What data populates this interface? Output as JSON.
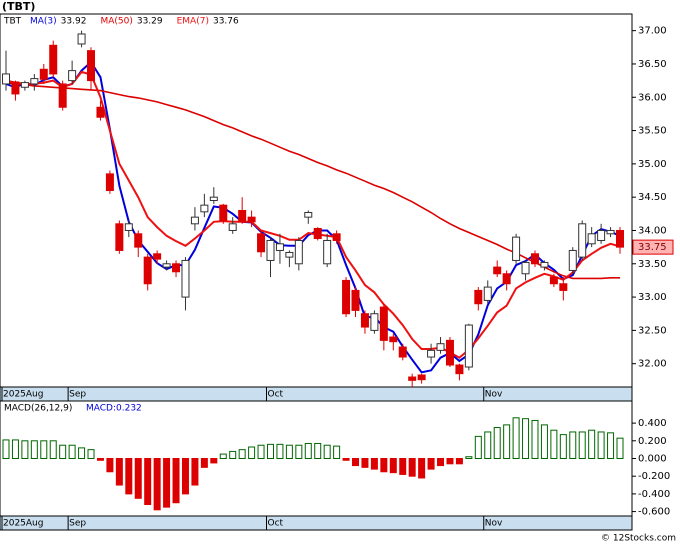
{
  "chart_data": [
    {
      "type": "candlestick",
      "title": "(TBT)",
      "symbol": "TBT",
      "categories": [
        "2025Aug",
        null,
        null,
        null,
        null,
        null,
        null,
        "Sep",
        null,
        null,
        null,
        null,
        null,
        null,
        null,
        null,
        null,
        null,
        null,
        null,
        null,
        null,
        null,
        null,
        null,
        null,
        null,
        null,
        "Oct",
        null,
        null,
        null,
        null,
        null,
        null,
        null,
        null,
        null,
        null,
        null,
        null,
        null,
        null,
        null,
        null,
        null,
        null,
        null,
        null,
        null,
        null,
        "Nov",
        null,
        null,
        null,
        null,
        null,
        null,
        null,
        null,
        null,
        null,
        null,
        null,
        null,
        null
      ],
      "open": [
        36.2,
        36.23,
        36.15,
        36.2,
        36.42,
        36.78,
        36.2,
        36.25,
        36.8,
        36.7,
        35.85,
        34.85,
        34.1,
        34.0,
        33.95,
        33.6,
        33.65,
        33.45,
        33.5,
        33.0,
        34.1,
        34.28,
        34.45,
        34.38,
        34.0,
        34.3,
        34.2,
        33.95,
        33.55,
        33.7,
        33.6,
        33.5,
        34.2,
        34.03,
        33.5,
        33.95,
        33.25,
        33.1,
        32.75,
        32.5,
        32.85,
        32.4,
        32.25,
        31.8,
        31.83,
        32.1,
        32.2,
        32.35,
        31.98,
        31.95,
        33.1,
        32.95,
        33.45,
        33.35,
        33.55,
        33.35,
        33.65,
        33.45,
        33.3,
        33.2,
        33.4,
        33.6,
        33.8,
        33.85,
        33.95,
        34.0
      ],
      "high": [
        36.7,
        36.25,
        36.25,
        36.35,
        36.5,
        36.85,
        36.25,
        36.55,
        37.0,
        36.75,
        35.95,
        34.9,
        34.15,
        34.15,
        34.0,
        33.65,
        33.7,
        33.55,
        33.55,
        33.6,
        34.35,
        34.55,
        34.65,
        34.4,
        34.2,
        34.5,
        34.3,
        34.0,
        33.9,
        33.95,
        33.7,
        33.9,
        34.3,
        34.05,
        33.95,
        34.0,
        33.3,
        33.15,
        32.8,
        32.8,
        32.9,
        32.45,
        32.3,
        31.85,
        31.85,
        32.3,
        32.4,
        32.4,
        32.0,
        32.6,
        33.15,
        33.25,
        33.55,
        33.4,
        33.95,
        33.55,
        33.7,
        33.55,
        33.35,
        33.3,
        33.75,
        34.15,
        34.05,
        34.1,
        34.05,
        34.05
      ],
      "low": [
        36.1,
        35.95,
        36.1,
        36.1,
        36.2,
        36.3,
        35.8,
        36.2,
        36.75,
        36.1,
        35.65,
        34.55,
        33.65,
        33.9,
        33.6,
        33.1,
        33.5,
        33.4,
        33.3,
        32.8,
        34.0,
        34.2,
        34.4,
        34.1,
        33.95,
        34.1,
        34.05,
        33.6,
        33.3,
        33.5,
        33.45,
        33.4,
        34.1,
        33.85,
        33.45,
        33.8,
        32.7,
        32.7,
        32.45,
        32.45,
        32.2,
        32.2,
        32.05,
        31.65,
        31.7,
        32.0,
        32.15,
        31.95,
        31.75,
        31.9,
        32.8,
        32.9,
        33.3,
        33.1,
        33.5,
        33.25,
        33.45,
        33.4,
        33.15,
        32.95,
        33.35,
        33.55,
        33.75,
        33.8,
        33.9,
        33.65
      ],
      "close": [
        36.35,
        36.05,
        36.22,
        36.28,
        36.27,
        36.35,
        35.85,
        36.4,
        36.95,
        36.25,
        35.7,
        34.6,
        33.7,
        34.1,
        33.75,
        33.2,
        33.57,
        33.5,
        33.38,
        33.55,
        34.2,
        34.38,
        34.5,
        34.15,
        34.1,
        34.13,
        34.13,
        33.68,
        33.85,
        33.8,
        33.67,
        33.85,
        34.27,
        33.88,
        33.85,
        33.85,
        32.75,
        32.8,
        32.55,
        32.75,
        32.35,
        32.33,
        32.1,
        31.75,
        31.76,
        32.2,
        32.3,
        31.98,
        31.85,
        32.58,
        32.9,
        33.15,
        33.35,
        33.2,
        33.9,
        33.52,
        33.5,
        33.52,
        33.2,
        33.1,
        33.7,
        34.1,
        33.95,
        34.0,
        34.0,
        33.75
      ],
      "up_color": "#006600",
      "down_color": "#dd0000",
      "series": [
        {
          "name": "MA(3)",
          "color": "#0000dd",
          "values": [
            36.2,
            36.15,
            36.21,
            36.18,
            36.26,
            36.3,
            36.16,
            36.2,
            36.4,
            36.53,
            36.3,
            35.52,
            34.67,
            34.13,
            33.85,
            33.68,
            33.51,
            33.42,
            33.48,
            33.48,
            33.71,
            34.04,
            34.36,
            34.34,
            34.25,
            34.13,
            34.12,
            33.98,
            33.89,
            33.78,
            33.77,
            33.77,
            33.93,
            34.0,
            34.0,
            33.86,
            33.48,
            33.13,
            32.7,
            32.7,
            32.55,
            32.48,
            32.26,
            32.06,
            31.87,
            31.9,
            32.09,
            32.16,
            32.04,
            32.14,
            32.44,
            32.88,
            33.13,
            33.23,
            33.48,
            33.54,
            33.64,
            33.51,
            33.41,
            33.27,
            33.33,
            33.63,
            33.92,
            34.02,
            33.98,
            33.92
          ]
        },
        {
          "name": "MA(50)",
          "color": "#dd0000",
          "values": [
            36.22,
            36.2,
            36.19,
            36.17,
            36.16,
            36.15,
            36.14,
            36.13,
            36.12,
            36.11,
            36.1,
            36.07,
            36.04,
            36.01,
            35.99,
            35.96,
            35.93,
            35.89,
            35.85,
            35.81,
            35.76,
            35.71,
            35.65,
            35.59,
            35.54,
            35.48,
            35.42,
            35.37,
            35.31,
            35.25,
            35.19,
            35.14,
            35.08,
            35.02,
            34.97,
            34.91,
            34.86,
            34.8,
            34.74,
            34.68,
            34.63,
            34.57,
            34.5,
            34.43,
            34.35,
            34.27,
            34.18,
            34.1,
            34.03,
            33.97,
            33.91,
            33.85,
            33.79,
            33.72,
            33.66,
            33.59,
            33.52,
            33.45,
            33.38,
            33.32,
            33.28,
            33.28,
            33.28,
            33.28,
            33.29,
            33.29
          ]
        },
        {
          "name": "EMA(7)",
          "color": "#ee1111",
          "values": [
            36.25,
            36.22,
            36.2,
            36.2,
            36.22,
            36.25,
            36.15,
            36.2,
            36.38,
            36.34,
            36.0,
            35.5,
            35.0,
            34.75,
            34.5,
            34.2,
            34.05,
            33.92,
            33.84,
            33.77,
            33.88,
            34.0,
            34.13,
            34.14,
            34.13,
            34.13,
            34.13,
            34.0,
            33.96,
            33.92,
            33.86,
            33.86,
            33.96,
            33.94,
            33.92,
            33.9,
            33.6,
            33.4,
            33.18,
            33.07,
            32.89,
            32.75,
            32.58,
            32.37,
            32.22,
            32.22,
            32.24,
            32.17,
            32.09,
            32.21,
            32.38,
            32.57,
            32.77,
            32.87,
            33.13,
            33.22,
            33.29,
            33.35,
            33.31,
            33.26,
            33.37,
            33.55,
            33.65,
            33.74,
            33.8,
            33.76
          ]
        }
      ],
      "ylim": [
        31.65,
        37.25
      ],
      "yticks": [
        {
          "value": 32,
          "label": "32.00"
        },
        {
          "value": 32.5,
          "label": "32.50"
        },
        {
          "value": 33,
          "label": "33.00"
        },
        {
          "value": 33.5,
          "label": "33.50"
        },
        {
          "value": 34,
          "label": "34.00"
        },
        {
          "value": 34.5,
          "label": "34.50"
        },
        {
          "value": 35,
          "label": "35.00"
        },
        {
          "value": 35.5,
          "label": "35.50"
        },
        {
          "value": 36,
          "label": "36.00"
        },
        {
          "value": 36.5,
          "label": "36.50"
        },
        {
          "value": 37,
          "label": "37.00"
        }
      ]
    },
    {
      "type": "bar",
      "title": "MACD(26,12,9)",
      "legend": "MACD:0.232",
      "categories": [
        "2025Aug",
        null,
        null,
        null,
        null,
        null,
        null,
        "Sep",
        null,
        null,
        null,
        null,
        null,
        null,
        null,
        null,
        null,
        null,
        null,
        null,
        null,
        null,
        null,
        null,
        null,
        null,
        null,
        null,
        "Oct",
        null,
        null,
        null,
        null,
        null,
        null,
        null,
        null,
        null,
        null,
        null,
        null,
        null,
        null,
        null,
        null,
        null,
        null,
        null,
        null,
        null,
        null,
        "Nov",
        null,
        null,
        null,
        null,
        null,
        null,
        null,
        null,
        null,
        null,
        null,
        null,
        null,
        null
      ],
      "values": [
        0.21,
        0.21,
        0.2,
        0.2,
        0.2,
        0.2,
        0.15,
        0.15,
        0.12,
        0.1,
        -0.02,
        -0.15,
        -0.3,
        -0.4,
        -0.45,
        -0.52,
        -0.58,
        -0.55,
        -0.5,
        -0.4,
        -0.3,
        -0.1,
        -0.05,
        0.05,
        0.08,
        0.1,
        0.13,
        0.15,
        0.16,
        0.16,
        0.15,
        0.15,
        0.17,
        0.17,
        0.15,
        0.14,
        -0.02,
        -0.08,
        -0.1,
        -0.12,
        -0.15,
        -0.16,
        -0.18,
        -0.2,
        -0.22,
        -0.12,
        -0.08,
        -0.06,
        -0.06,
        0.02,
        0.25,
        0.3,
        0.35,
        0.38,
        0.46,
        0.45,
        0.43,
        0.38,
        0.32,
        0.27,
        0.3,
        0.3,
        0.32,
        0.3,
        0.29,
        0.23
      ],
      "up_color": "#006600",
      "down_color": "#dd0000",
      "ylim": [
        -0.65,
        0.65
      ],
      "yticks": [
        {
          "value": 0.4,
          "label": "0.400"
        },
        {
          "value": 0.2,
          "label": "0.200"
        },
        {
          "value": 0,
          "label": "0.000"
        },
        {
          "value": -0.2,
          "label": "-0.200"
        },
        {
          "value": -0.4,
          "label": "-0.400"
        },
        {
          "value": -0.6,
          "label": "-0.600"
        }
      ]
    },
    {
      "type": "footer",
      "text": "© 12Stocks.com"
    }
  ]
}
